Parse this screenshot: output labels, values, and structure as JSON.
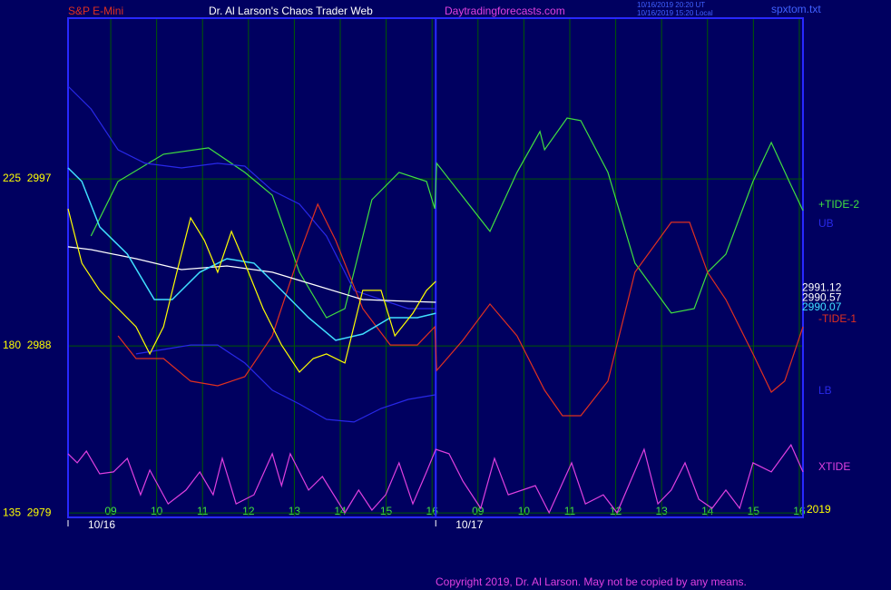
{
  "chart_data": {
    "type": "line",
    "title": "Dr. Al Larson's Chaos Trader Web",
    "instrument": "S&P E-Mini",
    "site": "Daytradingforecasts.com",
    "timestamps": [
      "10/16/2019 20:20 UT",
      "10/16/2019 15:20 Local"
    ],
    "file": "spxtom.txt",
    "copyright": "Copyright 2019, Dr. Al Larson. May not be copied by any means.",
    "dates": [
      {
        "value": 0.07,
        "label": "10/16"
      },
      {
        "value": 8.08,
        "label": "10/17"
      }
    ],
    "year": "2019",
    "xlim": [
      0.07,
      16.08
    ],
    "ylim": [
      2978.76,
      3005.66
    ],
    "xticks": [
      {
        "value": 1,
        "label": "09"
      },
      {
        "value": 2,
        "label": "10"
      },
      {
        "value": 3,
        "label": "11"
      },
      {
        "value": 4,
        "label": "12"
      },
      {
        "value": 5,
        "label": "13"
      },
      {
        "value": 6,
        "label": "14"
      },
      {
        "value": 7,
        "label": "15"
      },
      {
        "value": 8,
        "label": "16"
      },
      {
        "value": 9,
        "label": "09"
      },
      {
        "value": 10,
        "label": "10"
      },
      {
        "value": 11,
        "label": "11"
      },
      {
        "value": 12,
        "label": "12"
      },
      {
        "value": 13,
        "label": "13"
      },
      {
        "value": 14,
        "label": "14"
      },
      {
        "value": 15,
        "label": "15"
      },
      {
        "value": 16,
        "label": "16"
      }
    ],
    "yticks": [
      {
        "value": 2997,
        "label": "225  2997"
      },
      {
        "value": 2988,
        "label": "180  2988"
      },
      {
        "value": 2979,
        "label": "135  2979"
      }
    ],
    "grid": true,
    "price_labels": [
      {
        "value": 2991.12,
        "color": "#ffffff"
      },
      {
        "value": 2990.57,
        "color": "#ffffff"
      },
      {
        "value": 2990.07,
        "color": "#40e0ff"
      }
    ],
    "series": [
      {
        "name": "+TIDE-2",
        "color": "#40e040",
        "x": [
          0.57,
          1.16,
          2.15,
          3.13,
          3.92,
          4.52,
          5.11,
          5.7,
          6.1,
          6.69,
          7.28,
          7.88,
          8.06,
          8.1,
          9.26,
          9.85,
          10.35,
          10.45,
          10.94,
          11.24,
          11.83,
          12.42,
          13.21,
          13.71,
          14.0,
          14.4,
          14.99,
          15.39,
          15.78,
          16.08
        ],
        "values": [
          2993.92,
          2996.86,
          2998.33,
          2998.67,
          2997.35,
          2996.12,
          2991.97,
          2989.52,
          2990.01,
          2995.88,
          2997.35,
          2996.86,
          2995.39,
          2997.84,
          2994.17,
          2997.35,
          2999.55,
          2998.57,
          3000.28,
          3000.14,
          2997.35,
          2992.46,
          2989.77,
          2990.01,
          2991.97,
          2992.94,
          2996.86,
          2998.96,
          2996.86,
          2995.29
        ]
      },
      {
        "name": "UB",
        "color": "#2828e8",
        "x": [
          0.07,
          0.57,
          1.16,
          1.75,
          2.54,
          3.33,
          3.92,
          4.52,
          5.11,
          5.7,
          6.3,
          6.89,
          7.48,
          8.08
        ],
        "values": [
          3001.99,
          3000.77,
          2998.57,
          2997.84,
          2997.59,
          2997.84,
          2997.69,
          2996.37,
          2995.64,
          2993.92,
          2990.99,
          2990.5,
          2990.01,
          2990.01
        ]
      },
      {
        "name": "-TIDE-1",
        "color": "#e03020",
        "x": [
          1.16,
          1.55,
          2.15,
          2.74,
          3.33,
          3.92,
          4.52,
          5.11,
          5.51,
          5.9,
          6.49,
          7.09,
          7.68,
          8.06,
          8.1,
          8.67,
          9.26,
          9.85,
          10.45,
          10.84,
          11.24,
          11.83,
          12.42,
          13.21,
          13.61,
          14.0,
          14.4,
          14.99,
          15.39,
          15.68,
          16.08
        ],
        "values": [
          2988.54,
          2987.32,
          2987.32,
          2986.1,
          2985.85,
          2986.34,
          2988.54,
          2992.95,
          2995.64,
          2993.68,
          2990.01,
          2988.05,
          2988.05,
          2989.03,
          2986.68,
          2988.3,
          2990.26,
          2988.54,
          2985.61,
          2984.24,
          2984.24,
          2986.1,
          2991.97,
          2994.66,
          2994.66,
          2991.97,
          2990.5,
          2987.57,
          2985.51,
          2986.1,
          2989.03
        ]
      },
      {
        "name": "LB",
        "color": "#2828e8",
        "x": [
          1.55,
          2.15,
          2.74,
          3.33,
          3.92,
          4.52,
          5.11,
          5.7,
          6.3,
          6.89,
          7.48,
          8.08
        ],
        "values": [
          2987.57,
          2987.81,
          2988.05,
          2988.05,
          2987.08,
          2985.61,
          2984.87,
          2984.04,
          2983.9,
          2984.63,
          2985.12,
          2985.37
        ]
      },
      {
        "name": "XTIDE",
        "color": "#e040e0",
        "x": [
          0.07,
          0.27,
          0.47,
          0.76,
          1.06,
          1.36,
          1.65,
          1.85,
          2.25,
          2.64,
          2.94,
          3.23,
          3.43,
          3.73,
          4.12,
          4.52,
          4.72,
          4.91,
          5.31,
          5.61,
          6.1,
          6.4,
          6.69,
          6.99,
          7.28,
          7.58,
          7.88,
          8.08,
          8.37,
          8.67,
          9.06,
          9.36,
          9.66,
          10.25,
          10.55,
          11.04,
          11.34,
          11.73,
          12.03,
          12.62,
          12.92,
          13.21,
          13.51,
          13.81,
          14.1,
          14.4,
          14.7,
          14.99,
          15.39,
          15.82,
          16.08
        ],
        "values": [
          2982.19,
          2981.7,
          2982.33,
          2981.11,
          2981.21,
          2981.94,
          2979.98,
          2981.31,
          2979.49,
          2980.23,
          2981.21,
          2979.98,
          2981.94,
          2979.49,
          2979.98,
          2982.19,
          2980.47,
          2982.19,
          2980.23,
          2980.96,
          2979.01,
          2980.23,
          2979.15,
          2979.98,
          2981.7,
          2979.49,
          2981.21,
          2982.43,
          2982.19,
          2980.72,
          2979.25,
          2981.94,
          2979.98,
          2980.47,
          2979.01,
          2981.7,
          2979.49,
          2979.98,
          2979.01,
          2982.43,
          2979.49,
          2980.23,
          2981.7,
          2979.74,
          2979.25,
          2980.23,
          2979.25,
          2981.7,
          2981.21,
          2982.67,
          2981.21
        ]
      },
      {
        "color": "#ffffff",
        "x": [
          0.07,
          0.57,
          1.55,
          2.54,
          3.53,
          4.52,
          5.51,
          6.49,
          7.48,
          8.08
        ],
        "values": [
          2993.34,
          2993.19,
          2992.7,
          2992.11,
          2992.31,
          2991.97,
          2991.23,
          2990.5,
          2990.4,
          2990.35
        ]
      },
      {
        "color": "#40e0ff",
        "x": [
          0.07,
          0.37,
          0.76,
          1.36,
          1.95,
          2.34,
          2.94,
          3.53,
          4.12,
          4.72,
          5.31,
          5.9,
          6.49,
          7.09,
          7.68,
          8.08
        ],
        "values": [
          2997.59,
          2996.86,
          2994.41,
          2992.95,
          2990.5,
          2990.5,
          2991.97,
          2992.7,
          2992.46,
          2990.99,
          2989.52,
          2988.3,
          2988.64,
          2989.52,
          2989.52,
          2989.76
        ]
      },
      {
        "color": "#ffff00",
        "x": [
          0.07,
          0.37,
          0.76,
          1.16,
          1.55,
          1.85,
          2.15,
          2.44,
          2.74,
          3.04,
          3.33,
          3.63,
          3.92,
          4.32,
          4.72,
          5.11,
          5.41,
          5.7,
          6.1,
          6.49,
          6.89,
          7.19,
          7.58,
          7.88,
          8.08
        ],
        "values": [
          2995.39,
          2992.46,
          2990.99,
          2990.01,
          2989.03,
          2987.57,
          2989.03,
          2991.97,
          2994.9,
          2993.68,
          2991.97,
          2994.17,
          2992.46,
          2990.01,
          2988.05,
          2986.59,
          2987.32,
          2987.57,
          2987.08,
          2990.99,
          2990.99,
          2988.54,
          2989.76,
          2990.99,
          2991.48
        ]
      }
    ]
  }
}
